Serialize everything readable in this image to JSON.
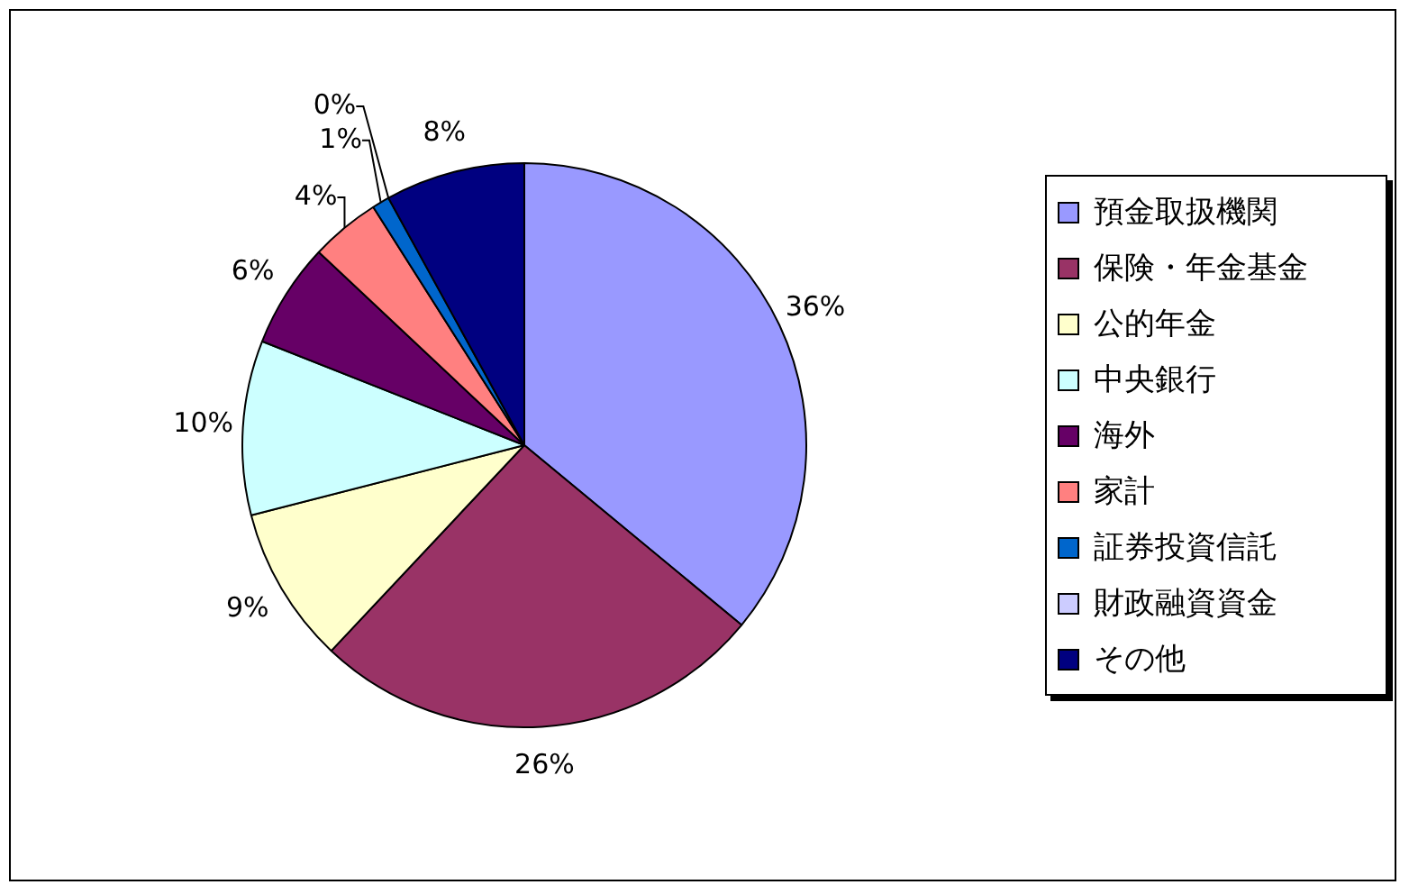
{
  "chart_data": {
    "type": "pie",
    "categories": [
      "預金取扱機関",
      "保険・年金基金",
      "公的年金",
      "中央銀行",
      "海外",
      "家計",
      "証券投資信託",
      "財政融資資金",
      "その他"
    ],
    "values": [
      36,
      26,
      9,
      10,
      6,
      4,
      1,
      0,
      8
    ],
    "value_labels": [
      "36%",
      "26%",
      "9%",
      "10%",
      "6%",
      "4%",
      "1%",
      "0%",
      "8%"
    ],
    "colors": [
      "#9999ff",
      "#993366",
      "#ffffcc",
      "#ccffff",
      "#660066",
      "#ff8080",
      "#0066cc",
      "#ccccff",
      "#000080"
    ],
    "legend": "right"
  }
}
